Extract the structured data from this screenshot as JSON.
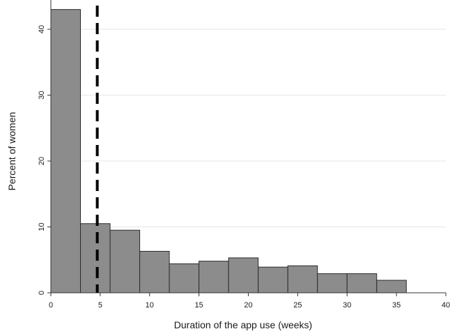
{
  "chart_data": {
    "type": "bar",
    "subtype": "histogram",
    "xlabel": "Duration of the app use (weeks)",
    "ylabel": "Percent of women",
    "xlim": [
      0,
      40
    ],
    "ylim": [
      0,
      45
    ],
    "xticks": [
      0,
      5,
      10,
      15,
      20,
      25,
      30,
      35,
      40
    ],
    "yticks": [
      0,
      10,
      20,
      30,
      40
    ],
    "bin_edges": [
      0,
      3,
      6,
      9,
      12,
      15,
      18,
      21,
      24,
      27,
      30,
      33,
      36
    ],
    "values": [
      43.0,
      10.5,
      9.5,
      6.3,
      4.4,
      4.8,
      5.3,
      3.9,
      4.1,
      2.9,
      2.9,
      1.9
    ],
    "reference_line": {
      "orientation": "vertical",
      "x": 4.7,
      "style": "dashed",
      "color": "#000000"
    },
    "colors": {
      "bar_fill": "#8c8c8c",
      "bar_stroke": "#2b2b2b",
      "grid": "#e6e6e6",
      "axis": "#333333"
    },
    "grid": "horizontal",
    "legend": "none"
  }
}
